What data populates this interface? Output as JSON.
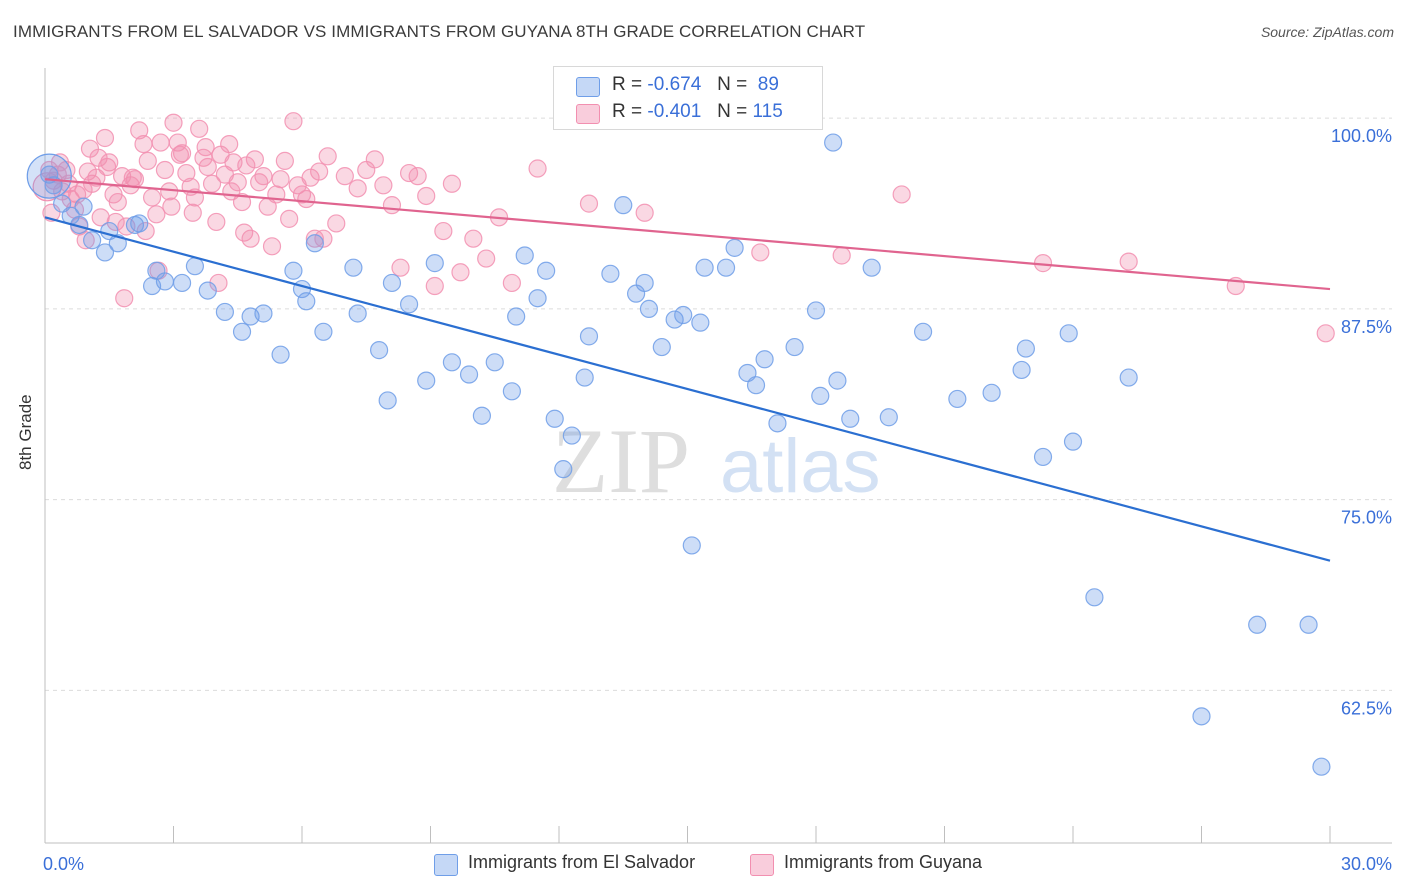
{
  "header": {
    "title": "IMMIGRANTS FROM EL SALVADOR VS IMMIGRANTS FROM GUYANA 8TH GRADE CORRELATION CHART",
    "source": "Source: ZipAtlas.com"
  },
  "watermark": {
    "zip": "ZIP",
    "atlas": "atlas"
  },
  "legend": {
    "rows": [
      {
        "r_label": "R =",
        "r_value": "-0.674",
        "n_label": "N =",
        "n_value": "89"
      },
      {
        "r_label": "R =",
        "r_value": "-0.401",
        "n_label": "N =",
        "n_value": "115"
      }
    ]
  },
  "chart_data": {
    "type": "scatter",
    "title": "IMMIGRANTS FROM EL SALVADOR VS IMMIGRANTS FROM GUYANA 8TH GRADE CORRELATION CHART",
    "xlabel": "",
    "ylabel": "8th Grade",
    "xlim": [
      0,
      30
    ],
    "ylim": [
      52.5,
      102.5
    ],
    "x_tick_labels": [
      "0.0%",
      "30.0%"
    ],
    "y_ticks": [
      62.5,
      75.0,
      87.5,
      100.0
    ],
    "y_tick_labels": [
      "62.5%",
      "75.0%",
      "87.5%",
      "100.0%"
    ],
    "grid": true,
    "legend_position": "bottom",
    "colors": {
      "el_salvador": "#6f9ee8",
      "guyana": "#f28fb0",
      "el_salvador_line": "#2b6fd1",
      "guyana_line": "#e0648f",
      "tick_text": "#3a6fd8"
    },
    "series": [
      {
        "name": "Immigrants from El Salvador",
        "r": -0.674,
        "n": 89,
        "trend": [
          [
            0,
            93.5
          ],
          [
            30,
            71.0
          ]
        ],
        "points": [
          [
            0.1,
            96.3
          ],
          [
            0.2,
            95.6
          ],
          [
            0.4,
            94.4
          ],
          [
            0.6,
            93.6
          ],
          [
            0.8,
            93.0
          ],
          [
            1.1,
            92.0
          ],
          [
            1.4,
            91.2
          ],
          [
            1.7,
            91.8
          ],
          [
            2.1,
            93.0
          ],
          [
            2.5,
            89.0
          ],
          [
            2.8,
            89.3
          ],
          [
            3.2,
            89.2
          ],
          [
            3.8,
            88.7
          ],
          [
            4.2,
            87.3
          ],
          [
            4.8,
            87.0
          ],
          [
            5.1,
            87.2
          ],
          [
            2.6,
            90.0
          ],
          [
            3.5,
            90.3
          ],
          [
            4.6,
            86.0
          ],
          [
            5.5,
            84.5
          ],
          [
            5.8,
            90.0
          ],
          [
            6.0,
            88.8
          ],
          [
            6.3,
            91.8
          ],
          [
            6.5,
            86.0
          ],
          [
            7.2,
            90.2
          ],
          [
            7.3,
            87.2
          ],
          [
            7.8,
            84.8
          ],
          [
            8.0,
            81.5
          ],
          [
            8.1,
            89.2
          ],
          [
            8.5,
            87.8
          ],
          [
            9.1,
            90.5
          ],
          [
            9.5,
            84.0
          ],
          [
            9.9,
            83.2
          ],
          [
            10.2,
            80.5
          ],
          [
            10.5,
            84.0
          ],
          [
            11.0,
            87.0
          ],
          [
            11.2,
            91.0
          ],
          [
            11.5,
            88.2
          ],
          [
            11.7,
            90.0
          ],
          [
            11.9,
            80.3
          ],
          [
            12.1,
            77.0
          ],
          [
            12.3,
            79.2
          ],
          [
            12.7,
            85.7
          ],
          [
            13.2,
            89.8
          ],
          [
            13.5,
            94.3
          ],
          [
            13.8,
            88.5
          ],
          [
            14.0,
            89.2
          ],
          [
            14.1,
            87.5
          ],
          [
            14.7,
            86.8
          ],
          [
            14.9,
            87.1
          ],
          [
            15.1,
            72.0
          ],
          [
            15.3,
            86.6
          ],
          [
            15.4,
            90.2
          ],
          [
            15.9,
            90.2
          ],
          [
            16.1,
            91.5
          ],
          [
            16.4,
            83.3
          ],
          [
            16.8,
            84.2
          ],
          [
            17.1,
            80.0
          ],
          [
            17.5,
            85.0
          ],
          [
            18.0,
            87.4
          ],
          [
            18.4,
            98.4
          ],
          [
            18.5,
            82.8
          ],
          [
            18.8,
            80.3
          ],
          [
            19.3,
            90.2
          ],
          [
            19.7,
            80.4
          ],
          [
            20.5,
            86.0
          ],
          [
            22.1,
            82.0
          ],
          [
            22.8,
            83.5
          ],
          [
            22.9,
            84.9
          ],
          [
            23.3,
            77.8
          ],
          [
            23.9,
            85.9
          ],
          [
            24.0,
            78.8
          ],
          [
            24.5,
            68.6
          ],
          [
            25.3,
            83.0
          ],
          [
            27.0,
            60.8
          ],
          [
            28.3,
            66.8
          ],
          [
            29.5,
            66.8
          ],
          [
            29.8,
            57.5
          ],
          [
            2.2,
            93.1
          ],
          [
            0.9,
            94.2
          ],
          [
            1.5,
            92.6
          ],
          [
            6.1,
            88.0
          ],
          [
            8.9,
            82.8
          ],
          [
            10.9,
            82.1
          ],
          [
            12.6,
            83.0
          ],
          [
            14.4,
            85.0
          ],
          [
            16.6,
            82.5
          ],
          [
            18.1,
            81.8
          ],
          [
            21.3,
            81.6
          ]
        ]
      },
      {
        "name": "Immigrants from Guyana",
        "r": -0.401,
        "n": 115,
        "trend": [
          [
            0,
            96.0
          ],
          [
            30,
            88.8
          ]
        ],
        "points": [
          [
            0.1,
            96.6
          ],
          [
            0.2,
            95.9
          ],
          [
            0.3,
            96.3
          ],
          [
            0.4,
            95.2
          ],
          [
            0.5,
            96.6
          ],
          [
            0.6,
            94.7
          ],
          [
            0.7,
            94.0
          ],
          [
            0.8,
            92.9
          ],
          [
            0.9,
            95.3
          ],
          [
            1.0,
            96.5
          ],
          [
            1.1,
            95.7
          ],
          [
            1.2,
            96.1
          ],
          [
            1.3,
            93.5
          ],
          [
            1.4,
            98.7
          ],
          [
            1.5,
            97.1
          ],
          [
            1.6,
            95.0
          ],
          [
            1.7,
            94.5
          ],
          [
            1.8,
            96.2
          ],
          [
            1.9,
            92.9
          ],
          [
            2.0,
            95.6
          ],
          [
            2.1,
            96.0
          ],
          [
            2.2,
            99.2
          ],
          [
            2.3,
            98.3
          ],
          [
            2.4,
            97.2
          ],
          [
            2.5,
            94.8
          ],
          [
            2.6,
            93.7
          ],
          [
            2.7,
            98.4
          ],
          [
            2.8,
            96.6
          ],
          [
            2.9,
            95.2
          ],
          [
            3.0,
            99.7
          ],
          [
            3.1,
            98.4
          ],
          [
            3.2,
            97.7
          ],
          [
            3.3,
            96.4
          ],
          [
            3.4,
            95.5
          ],
          [
            3.5,
            94.8
          ],
          [
            3.6,
            99.3
          ],
          [
            3.7,
            97.4
          ],
          [
            3.8,
            96.8
          ],
          [
            3.9,
            95.7
          ],
          [
            4.0,
            93.2
          ],
          [
            4.1,
            97.6
          ],
          [
            4.2,
            96.3
          ],
          [
            4.3,
            98.3
          ],
          [
            4.4,
            97.1
          ],
          [
            4.5,
            95.8
          ],
          [
            4.6,
            94.5
          ],
          [
            4.7,
            96.9
          ],
          [
            4.8,
            92.1
          ],
          [
            4.9,
            97.3
          ],
          [
            5.0,
            95.8
          ],
          [
            5.1,
            96.2
          ],
          [
            5.2,
            94.2
          ],
          [
            5.3,
            91.6
          ],
          [
            5.4,
            95.0
          ],
          [
            5.5,
            96.0
          ],
          [
            5.6,
            97.2
          ],
          [
            5.7,
            93.4
          ],
          [
            5.8,
            99.8
          ],
          [
            5.9,
            95.6
          ],
          [
            6.0,
            95.0
          ],
          [
            6.1,
            94.7
          ],
          [
            6.2,
            96.1
          ],
          [
            6.3,
            92.1
          ],
          [
            6.4,
            96.5
          ],
          [
            6.5,
            92.1
          ],
          [
            6.6,
            97.5
          ],
          [
            6.8,
            93.1
          ],
          [
            7.0,
            96.2
          ],
          [
            7.3,
            95.4
          ],
          [
            7.5,
            96.6
          ],
          [
            7.7,
            97.3
          ],
          [
            7.9,
            95.6
          ],
          [
            8.1,
            94.3
          ],
          [
            8.3,
            90.2
          ],
          [
            8.5,
            96.4
          ],
          [
            8.7,
            96.2
          ],
          [
            8.9,
            94.9
          ],
          [
            9.1,
            89.0
          ],
          [
            9.3,
            92.6
          ],
          [
            9.5,
            95.7
          ],
          [
            9.7,
            89.9
          ],
          [
            10.0,
            92.1
          ],
          [
            10.3,
            90.8
          ],
          [
            10.6,
            93.5
          ],
          [
            10.9,
            89.2
          ],
          [
            0.15,
            93.8
          ],
          [
            0.35,
            97.1
          ],
          [
            0.55,
            95.7
          ],
          [
            0.75,
            95.0
          ],
          [
            0.95,
            92.0
          ],
          [
            1.05,
            98.0
          ],
          [
            1.25,
            97.4
          ],
          [
            1.45,
            96.8
          ],
          [
            1.65,
            93.2
          ],
          [
            1.85,
            88.2
          ],
          [
            2.05,
            96.1
          ],
          [
            2.35,
            92.6
          ],
          [
            2.65,
            90.0
          ],
          [
            2.95,
            94.2
          ],
          [
            3.15,
            97.6
          ],
          [
            3.45,
            93.8
          ],
          [
            3.75,
            98.1
          ],
          [
            4.05,
            89.2
          ],
          [
            4.35,
            95.2
          ],
          [
            4.65,
            92.5
          ],
          [
            14.0,
            93.8
          ],
          [
            16.7,
            91.2
          ],
          [
            18.6,
            91.0
          ],
          [
            20.0,
            95.0
          ],
          [
            23.3,
            90.5
          ],
          [
            25.3,
            90.6
          ],
          [
            27.8,
            89.0
          ],
          [
            29.9,
            85.9
          ],
          [
            11.5,
            96.7
          ],
          [
            12.7,
            94.4
          ]
        ]
      }
    ]
  }
}
